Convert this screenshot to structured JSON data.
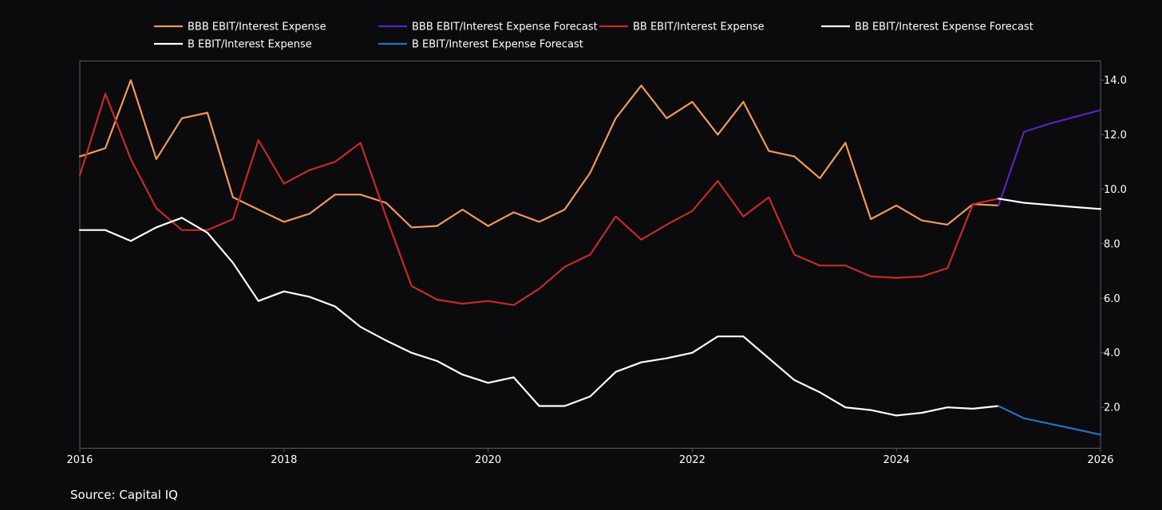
{
  "chart_data": {
    "type": "line",
    "title": "",
    "xlabel": "",
    "ylabel": "",
    "xlim": [
      2016,
      2026
    ],
    "ylim": [
      0.5,
      14.7
    ],
    "x_ticks": [
      {
        "value": 2016,
        "label": "2016"
      },
      {
        "value": 2018,
        "label": "2018"
      },
      {
        "value": 2020,
        "label": "2020"
      },
      {
        "value": 2022,
        "label": "2022"
      },
      {
        "value": 2024,
        "label": "2024"
      },
      {
        "value": 2026,
        "label": "2026"
      }
    ],
    "y_ticks": [
      {
        "value": 2,
        "label": "2.0"
      },
      {
        "value": 4,
        "label": "4.0"
      },
      {
        "value": 6,
        "label": "6.0"
      },
      {
        "value": 8,
        "label": "8.0"
      },
      {
        "value": 10,
        "label": "10.0"
      },
      {
        "value": 12,
        "label": "12.0"
      },
      {
        "value": 14,
        "label": "14.0"
      }
    ],
    "grid": false,
    "legend_position": "top",
    "series": [
      {
        "name": "BBB EBIT/Interest Expense",
        "color": "#f29a55",
        "x": [
          2016,
          2016.25,
          2016.5,
          2016.75,
          2017,
          2017.25,
          2017.5,
          2017.75,
          2018,
          2018.25,
          2018.5,
          2018.75,
          2019,
          2019.25,
          2019.5,
          2019.75,
          2020,
          2020.25,
          2020.5,
          2020.75,
          2021,
          2021.25,
          2021.5,
          2021.75,
          2022,
          2022.25,
          2022.5,
          2022.75,
          2023,
          2023.25,
          2023.5,
          2023.75,
          2024,
          2024.25,
          2024.5,
          2024.75,
          2025
        ],
        "values": [
          11.2,
          11.5,
          14.0,
          11.1,
          12.6,
          12.8,
          9.7,
          9.25,
          8.8,
          9.1,
          9.8,
          9.8,
          9.5,
          8.6,
          8.65,
          9.25,
          8.65,
          9.15,
          8.8,
          9.25,
          10.6,
          12.6,
          13.8,
          12.6,
          13.2,
          12.0,
          13.2,
          11.4,
          11.2,
          10.4,
          11.7,
          8.9,
          9.4,
          8.85,
          8.7,
          9.45,
          9.4
        ]
      },
      {
        "name": "BBB EBIT/Interest Expense Forecast",
        "color": "#5b22c2",
        "x": [
          2025,
          2025.25,
          2025.5,
          2025.75,
          2026
        ],
        "values": [
          9.4,
          12.1,
          12.4,
          12.65,
          12.9
        ]
      },
      {
        "name": "BB EBIT/Interest Expense",
        "color": "#c62a28",
        "x": [
          2016,
          2016.25,
          2016.5,
          2016.75,
          2017,
          2017.25,
          2017.5,
          2017.75,
          2018,
          2018.25,
          2018.5,
          2018.75,
          2019,
          2019.25,
          2019.5,
          2019.75,
          2020,
          2020.25,
          2020.5,
          2020.75,
          2021,
          2021.25,
          2021.5,
          2021.75,
          2022,
          2022.25,
          2022.5,
          2022.75,
          2023,
          2023.25,
          2023.5,
          2023.75,
          2024,
          2024.25,
          2024.5,
          2024.75,
          2025
        ],
        "values": [
          10.5,
          13.5,
          11.1,
          9.3,
          8.5,
          8.5,
          8.9,
          11.8,
          10.2,
          10.7,
          11.0,
          11.7,
          9.0,
          6.45,
          5.95,
          5.8,
          5.9,
          5.75,
          6.35,
          7.15,
          7.6,
          9.0,
          8.15,
          8.7,
          9.2,
          10.3,
          9.0,
          9.7,
          7.6,
          7.2,
          7.2,
          6.8,
          6.75,
          6.8,
          7.1,
          9.45,
          9.65
        ]
      },
      {
        "name": "BB EBIT/Interest Expense Forecast",
        "color": "#ffffff",
        "x": [
          2025,
          2025.25,
          2025.5,
          2025.75,
          2026
        ],
        "values": [
          9.65,
          9.5,
          9.42,
          9.34,
          9.27
        ]
      },
      {
        "name": "B EBIT/Interest Expense",
        "color": "#ffffff",
        "x": [
          2016,
          2016.25,
          2016.5,
          2016.75,
          2017,
          2017.25,
          2017.5,
          2017.75,
          2018,
          2018.25,
          2018.5,
          2018.75,
          2019,
          2019.25,
          2019.5,
          2019.75,
          2020,
          2020.25,
          2020.5,
          2020.75,
          2021,
          2021.25,
          2021.5,
          2021.75,
          2022,
          2022.25,
          2022.5,
          2022.75,
          2023,
          2023.25,
          2023.5,
          2023.75,
          2024,
          2024.25,
          2024.5,
          2024.75,
          2025
        ],
        "values": [
          8.5,
          8.5,
          8.1,
          8.6,
          8.95,
          8.4,
          7.3,
          5.9,
          6.25,
          6.05,
          5.7,
          4.95,
          4.45,
          4.0,
          3.7,
          3.2,
          2.9,
          3.1,
          2.05,
          2.05,
          2.4,
          3.3,
          3.65,
          3.8,
          4.0,
          4.6,
          4.6,
          3.8,
          3.0,
          2.55,
          2.0,
          1.9,
          1.7,
          1.8,
          2.0,
          1.95,
          2.05
        ]
      },
      {
        "name": "B EBIT/Interest Expense Forecast",
        "color": "#1f73c9",
        "x": [
          2025,
          2025.25,
          2025.5,
          2025.75,
          2026
        ],
        "values": [
          2.05,
          1.6,
          1.4,
          1.2,
          1.0
        ]
      }
    ]
  },
  "source": "Source: Capital IQ"
}
